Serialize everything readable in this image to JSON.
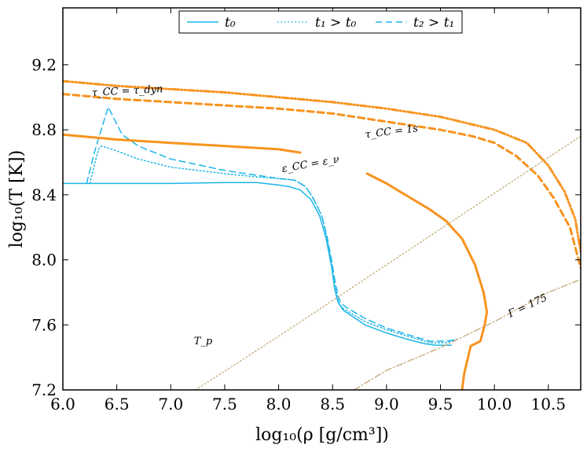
{
  "chart_data": {
    "type": "line",
    "title": "",
    "xlabel": "log₁₀(ρ [g/cm³])",
    "ylabel": "log₁₀(T [K])",
    "xlim": [
      6.0,
      10.8
    ],
    "ylim": [
      7.2,
      9.55
    ],
    "x_ticks": [
      "6.0",
      "6.5",
      "7.0",
      "7.5",
      "8.0",
      "8.5",
      "9.0",
      "9.5",
      "10.0",
      "10.5"
    ],
    "y_ticks": [
      "7.2",
      "7.6",
      "8.0",
      "8.4",
      "8.8",
      "9.2"
    ],
    "legend": {
      "position": "top-center",
      "entries": [
        {
          "label": "t₀",
          "style": "solid"
        },
        {
          "label": "t₁ > t₀",
          "style": "dotted"
        },
        {
          "label": "t₂ > t₁",
          "style": "dashed"
        }
      ]
    },
    "series": [
      {
        "name": "t₀",
        "color": "#1cb5e8",
        "style": "solid",
        "points": [
          [
            6.0,
            8.47
          ],
          [
            6.5,
            8.47
          ],
          [
            7.0,
            8.47
          ],
          [
            7.5,
            8.475
          ],
          [
            7.8,
            8.475
          ],
          [
            8.0,
            8.46
          ],
          [
            8.1,
            8.45
          ],
          [
            8.2,
            8.43
          ],
          [
            8.3,
            8.37
          ],
          [
            8.38,
            8.27
          ],
          [
            8.44,
            8.13
          ],
          [
            8.49,
            7.96
          ],
          [
            8.52,
            7.82
          ],
          [
            8.55,
            7.74
          ],
          [
            8.6,
            7.69
          ],
          [
            8.8,
            7.6
          ],
          [
            9.0,
            7.55
          ],
          [
            9.2,
            7.51
          ],
          [
            9.35,
            7.485
          ],
          [
            9.45,
            7.475
          ],
          [
            9.6,
            7.475
          ]
        ]
      },
      {
        "name": "t₁ > t₀",
        "color": "#1cb5e8",
        "style": "dotted",
        "points": [
          [
            6.25,
            8.47
          ],
          [
            6.28,
            8.55
          ],
          [
            6.33,
            8.68
          ],
          [
            6.36,
            8.7
          ],
          [
            6.5,
            8.67
          ],
          [
            6.7,
            8.62
          ],
          [
            7.0,
            8.57
          ],
          [
            7.5,
            8.53
          ],
          [
            7.8,
            8.51
          ],
          [
            8.0,
            8.5
          ],
          [
            8.15,
            8.49
          ],
          [
            8.25,
            8.45
          ],
          [
            8.32,
            8.38
          ],
          [
            8.4,
            8.27
          ],
          [
            8.45,
            8.13
          ],
          [
            8.49,
            7.98
          ],
          [
            8.52,
            7.84
          ],
          [
            8.56,
            7.73
          ],
          [
            8.6,
            7.7
          ],
          [
            8.8,
            7.62
          ],
          [
            9.0,
            7.57
          ],
          [
            9.2,
            7.53
          ],
          [
            9.4,
            7.49
          ],
          [
            9.55,
            7.49
          ],
          [
            9.65,
            7.51
          ]
        ]
      },
      {
        "name": "t₂ > t₁",
        "color": "#1cb5e8",
        "style": "dashed",
        "points": [
          [
            6.22,
            8.47
          ],
          [
            6.3,
            8.68
          ],
          [
            6.42,
            8.94
          ],
          [
            6.55,
            8.77
          ],
          [
            6.7,
            8.7
          ],
          [
            7.0,
            8.62
          ],
          [
            7.5,
            8.55
          ],
          [
            7.8,
            8.52
          ],
          [
            8.0,
            8.5
          ],
          [
            8.15,
            8.49
          ],
          [
            8.25,
            8.45
          ],
          [
            8.32,
            8.38
          ],
          [
            8.4,
            8.27
          ],
          [
            8.45,
            8.14
          ],
          [
            8.49,
            8.0
          ],
          [
            8.53,
            7.84
          ],
          [
            8.57,
            7.74
          ],
          [
            8.62,
            7.71
          ],
          [
            8.8,
            7.64
          ],
          [
            9.0,
            7.58
          ],
          [
            9.2,
            7.54
          ],
          [
            9.4,
            7.5
          ],
          [
            9.55,
            7.5
          ],
          [
            9.65,
            7.51
          ]
        ]
      },
      {
        "name": "τ_CC = τ_dyn",
        "color": "#f7931e",
        "style": "dashdotdot",
        "points": [
          [
            6.0,
            9.1
          ],
          [
            6.5,
            9.07
          ],
          [
            7.0,
            9.05
          ],
          [
            7.5,
            9.03
          ],
          [
            8.0,
            9.0
          ],
          [
            8.5,
            8.97
          ],
          [
            9.0,
            8.93
          ],
          [
            9.5,
            8.88
          ],
          [
            10.0,
            8.8
          ],
          [
            10.3,
            8.72
          ],
          [
            10.5,
            8.58
          ],
          [
            10.65,
            8.42
          ],
          [
            10.75,
            8.25
          ],
          [
            10.8,
            8.05
          ]
        ]
      },
      {
        "name": "τ_CC = 1s",
        "color": "#f7931e",
        "style": "dashed",
        "points": [
          [
            6.0,
            9.02
          ],
          [
            6.5,
            8.99
          ],
          [
            7.0,
            8.97
          ],
          [
            7.5,
            8.95
          ],
          [
            8.0,
            8.93
          ],
          [
            8.5,
            8.9
          ],
          [
            9.0,
            8.85
          ],
          [
            9.5,
            8.8
          ],
          [
            9.8,
            8.76
          ],
          [
            10.0,
            8.72
          ],
          [
            10.2,
            8.64
          ],
          [
            10.4,
            8.52
          ],
          [
            10.55,
            8.38
          ],
          [
            10.7,
            8.2
          ],
          [
            10.78,
            8.0
          ],
          [
            10.8,
            7.95
          ]
        ]
      },
      {
        "name": "ε_CC = ε_ν (part 1)",
        "color": "#f7931e",
        "style": "solid",
        "points": [
          [
            6.0,
            8.77
          ],
          [
            6.5,
            8.74
          ],
          [
            7.0,
            8.72
          ],
          [
            7.5,
            8.7
          ],
          [
            8.0,
            8.68
          ],
          [
            8.2,
            8.66
          ]
        ]
      },
      {
        "name": "ε_CC = ε_ν (part 2)",
        "color": "#f7931e",
        "style": "solid",
        "points": [
          [
            8.82,
            8.53
          ],
          [
            9.0,
            8.47
          ],
          [
            9.2,
            8.39
          ],
          [
            9.4,
            8.31
          ],
          [
            9.55,
            8.24
          ],
          [
            9.7,
            8.13
          ],
          [
            9.82,
            7.97
          ],
          [
            9.9,
            7.8
          ],
          [
            9.93,
            7.68
          ],
          [
            9.91,
            7.6
          ],
          [
            9.87,
            7.5
          ],
          [
            9.78,
            7.47
          ],
          [
            9.72,
            7.3
          ],
          [
            9.7,
            7.2
          ]
        ]
      },
      {
        "name": "T_p",
        "color": "#c8ad7f",
        "style": "dotted",
        "points": [
          [
            7.23,
            7.2
          ],
          [
            8.0,
            7.53
          ],
          [
            8.5,
            7.75
          ],
          [
            9.0,
            7.97
          ],
          [
            9.5,
            8.19
          ],
          [
            10.0,
            8.41
          ],
          [
            10.5,
            8.63
          ],
          [
            10.8,
            8.76
          ]
        ]
      },
      {
        "name": "Γ = 175",
        "color": "#c8ad7f",
        "style": "dashdot",
        "points": [
          [
            8.7,
            7.2
          ],
          [
            9.0,
            7.32
          ],
          [
            9.5,
            7.46
          ],
          [
            10.0,
            7.62
          ],
          [
            10.5,
            7.8
          ],
          [
            10.8,
            7.88
          ]
        ]
      }
    ],
    "annotations": [
      {
        "text": "τ_CC = τ_dyn",
        "x": 6.6,
        "y": 9.02,
        "rotate": -3
      },
      {
        "text": "τ_CC = 1s",
        "x": 9.05,
        "y": 8.77,
        "rotate": -7
      },
      {
        "text": "ε_CC = ε_ν",
        "x": 8.3,
        "y": 8.57,
        "rotate": -10
      },
      {
        "text": "T_p",
        "x": 7.3,
        "y": 7.48,
        "rotate": 0
      },
      {
        "text": "Γ = 175",
        "x": 10.32,
        "y": 7.7,
        "rotate": -25
      }
    ]
  }
}
